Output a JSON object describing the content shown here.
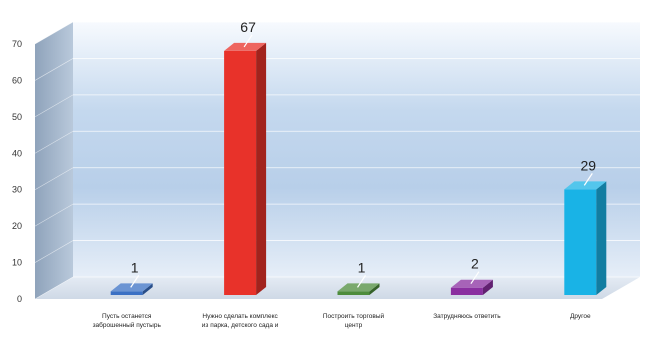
{
  "chart_data": {
    "type": "bar",
    "title": "",
    "xlabel": "",
    "ylabel": "",
    "ylim": [
      0,
      70
    ],
    "yticks": [
      0,
      10,
      20,
      30,
      40,
      50,
      60,
      70
    ],
    "grid": true,
    "legend": "none",
    "style": "3d",
    "categories": [
      [
        "Пусть останется",
        "заброшенный пустырь"
      ],
      [
        "Нужно сделать комплекс",
        "из парка, детского сада и"
      ],
      [
        "Построить торговый",
        "центр"
      ],
      [
        "Затрудняюсь ответить"
      ],
      [
        "Другое"
      ]
    ],
    "values": [
      1,
      67,
      1,
      2,
      29
    ],
    "colors": [
      "#3a70c4",
      "#e8322a",
      "#4d8c3c",
      "#8a2fa0",
      "#19b3e6"
    ]
  }
}
